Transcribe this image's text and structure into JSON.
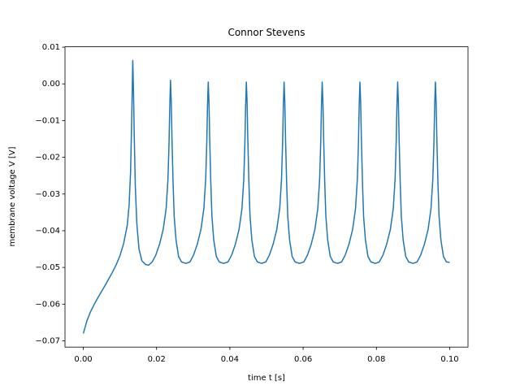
{
  "chart_data": {
    "type": "line",
    "title": "Connor Stevens",
    "x_label": "time t [s]",
    "y_label": "membrane voltage V [V]",
    "xlim": [
      -0.005,
      0.105
    ],
    "ylim": [
      -0.0717,
      0.0101
    ],
    "xticks": [
      {
        "value": 0,
        "label": "0.00"
      },
      {
        "value": 0.02,
        "label": "0.02"
      },
      {
        "value": 0.04,
        "label": "0.04"
      },
      {
        "value": 0.06,
        "label": "0.06"
      },
      {
        "value": 0.08,
        "label": "0.08"
      },
      {
        "value": 0.1,
        "label": "0.10"
      }
    ],
    "yticks": [
      0.01,
      {
        "value": 0,
        "label": "0.00"
      },
      {
        "value": -0.01,
        "label": "−0.01"
      },
      {
        "value": -0.02,
        "label": "−0.02"
      },
      {
        "value": -0.03,
        "label": "−0.03"
      },
      {
        "value": -0.04,
        "label": "−0.04"
      },
      {
        "value": -0.05,
        "label": "−0.05"
      },
      {
        "value": -0.06,
        "label": "−0.06"
      },
      {
        "value": -0.07,
        "label": "−0.07"
      }
    ],
    "x": [
      0,
      0.001,
      0.002,
      0.003,
      0.004,
      0.005,
      0.006,
      0.007,
      0.008,
      0.009,
      0.01,
      0.011,
      0.012,
      0.0125,
      0.0129,
      0.0132,
      0.0135,
      0.0137,
      0.0139,
      0.0142,
      0.0146,
      0.0152,
      0.016,
      0.017,
      0.0178,
      0.0188,
      0.0198,
      0.0208,
      0.0218,
      0.0226,
      0.0231,
      0.0234,
      0.0236,
      0.0238,
      0.024,
      0.0242,
      0.0245,
      0.0248,
      0.0253,
      0.026,
      0.0268,
      0.028,
      0.0291,
      0.0301,
      0.0311,
      0.0321,
      0.0329,
      0.0334,
      0.0337,
      0.0339,
      0.0341,
      0.0343,
      0.0345,
      0.0348,
      0.0351,
      0.0356,
      0.0363,
      0.0371,
      0.0383,
      0.0395,
      0.0405,
      0.0415,
      0.0425,
      0.0433,
      0.0438,
      0.0441,
      0.0443,
      0.0445,
      0.0447,
      0.0449,
      0.0452,
      0.0455,
      0.046,
      0.0467,
      0.0475,
      0.0487,
      0.0498,
      0.0508,
      0.0518,
      0.0528,
      0.0536,
      0.0541,
      0.0544,
      0.0546,
      0.0548,
      0.055,
      0.0552,
      0.0555,
      0.0558,
      0.0563,
      0.057,
      0.0578,
      0.059,
      0.0602,
      0.0612,
      0.0622,
      0.0632,
      0.064,
      0.0645,
      0.0648,
      0.065,
      0.0652,
      0.0654,
      0.0656,
      0.0659,
      0.0662,
      0.0667,
      0.0674,
      0.0682,
      0.0694,
      0.0705,
      0.0715,
      0.0725,
      0.0735,
      0.0743,
      0.0748,
      0.0751,
      0.0753,
      0.0755,
      0.0757,
      0.0759,
      0.0762,
      0.0765,
      0.077,
      0.0777,
      0.0785,
      0.0797,
      0.0808,
      0.0818,
      0.0828,
      0.0838,
      0.0846,
      0.0851,
      0.0854,
      0.0856,
      0.0858,
      0.086,
      0.0862,
      0.0865,
      0.0868,
      0.0873,
      0.088,
      0.0888,
      0.09,
      0.0911,
      0.0921,
      0.0931,
      0.0941,
      0.0949,
      0.0954,
      0.0957,
      0.0959,
      0.0961,
      0.0963,
      0.0965,
      0.0968,
      0.0971,
      0.0976,
      0.0983,
      0.0991,
      0.1
    ],
    "series": [
      {
        "color": "#1f77b4",
        "values": [
          -0.068,
          -0.0645,
          -0.062,
          -0.06,
          -0.0582,
          -0.0565,
          -0.0548,
          -0.053,
          -0.0512,
          -0.0492,
          -0.0468,
          -0.0435,
          -0.0385,
          -0.033,
          -0.024,
          -0.01,
          0.0064,
          -0.002,
          -0.014,
          -0.028,
          -0.038,
          -0.045,
          -0.0482,
          -0.0492,
          -0.0494,
          -0.0485,
          -0.0466,
          -0.0437,
          -0.0397,
          -0.034,
          -0.026,
          -0.016,
          -0.006,
          0.001,
          -0.005,
          -0.015,
          -0.027,
          -0.036,
          -0.0425,
          -0.047,
          -0.0485,
          -0.0489,
          -0.0485,
          -0.0466,
          -0.0437,
          -0.0397,
          -0.034,
          -0.026,
          -0.016,
          -0.006,
          0.0005,
          -0.005,
          -0.015,
          -0.027,
          -0.036,
          -0.0425,
          -0.047,
          -0.0485,
          -0.0489,
          -0.0485,
          -0.0466,
          -0.0437,
          -0.0397,
          -0.034,
          -0.026,
          -0.016,
          -0.006,
          0.0005,
          -0.005,
          -0.015,
          -0.027,
          -0.036,
          -0.0425,
          -0.047,
          -0.0485,
          -0.0489,
          -0.0485,
          -0.0466,
          -0.0437,
          -0.0397,
          -0.034,
          -0.026,
          -0.016,
          -0.006,
          0.0005,
          -0.005,
          -0.015,
          -0.027,
          -0.036,
          -0.0425,
          -0.047,
          -0.0485,
          -0.0489,
          -0.0485,
          -0.0466,
          -0.0437,
          -0.0397,
          -0.034,
          -0.026,
          -0.016,
          -0.006,
          0.0005,
          -0.005,
          -0.015,
          -0.027,
          -0.036,
          -0.0425,
          -0.047,
          -0.0485,
          -0.0489,
          -0.0485,
          -0.0466,
          -0.0437,
          -0.0397,
          -0.034,
          -0.026,
          -0.016,
          -0.006,
          0.0005,
          -0.005,
          -0.015,
          -0.027,
          -0.036,
          -0.0425,
          -0.047,
          -0.0485,
          -0.0489,
          -0.0485,
          -0.0466,
          -0.0437,
          -0.0397,
          -0.034,
          -0.026,
          -0.016,
          -0.006,
          0.0005,
          -0.005,
          -0.015,
          -0.027,
          -0.036,
          -0.0425,
          -0.047,
          -0.0485,
          -0.0489,
          -0.0485,
          -0.0466,
          -0.0437,
          -0.0397,
          -0.034,
          -0.026,
          -0.016,
          -0.006,
          0.0005,
          -0.005,
          -0.015,
          -0.027,
          -0.036,
          -0.0425,
          -0.047,
          -0.0485,
          -0.0486
        ]
      }
    ]
  }
}
